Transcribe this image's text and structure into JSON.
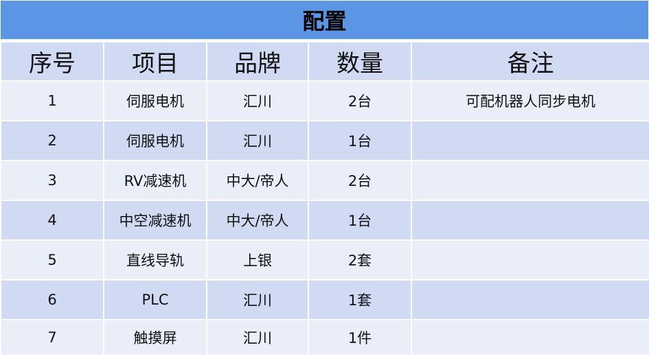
{
  "title": "配置",
  "headers": [
    "序号",
    "项目",
    "品牌",
    "数量",
    "备注"
  ],
  "rows": [
    [
      "1",
      "伺服电机",
      "汇川",
      "2台",
      "可配机器人同步电机"
    ],
    [
      "2",
      "伺服电机",
      "汇川",
      "1台",
      ""
    ],
    [
      "3",
      "RV减速机",
      "中大/帝人",
      "2台",
      ""
    ],
    [
      "4",
      "中空减速机",
      "中大/帝人",
      "1台",
      ""
    ],
    [
      "5",
      "直线导轨",
      "上银",
      "2套",
      ""
    ],
    [
      "6",
      "PLC",
      "汇川",
      "1套",
      ""
    ],
    [
      "7",
      "触摸屏",
      "汇川",
      "1件",
      ""
    ]
  ],
  "colors": {
    "title_bg": "#5b95e6",
    "header_bg": "#d0dbf3",
    "row_light": "#e9eef9",
    "row_dark": "#d0dbf3"
  }
}
